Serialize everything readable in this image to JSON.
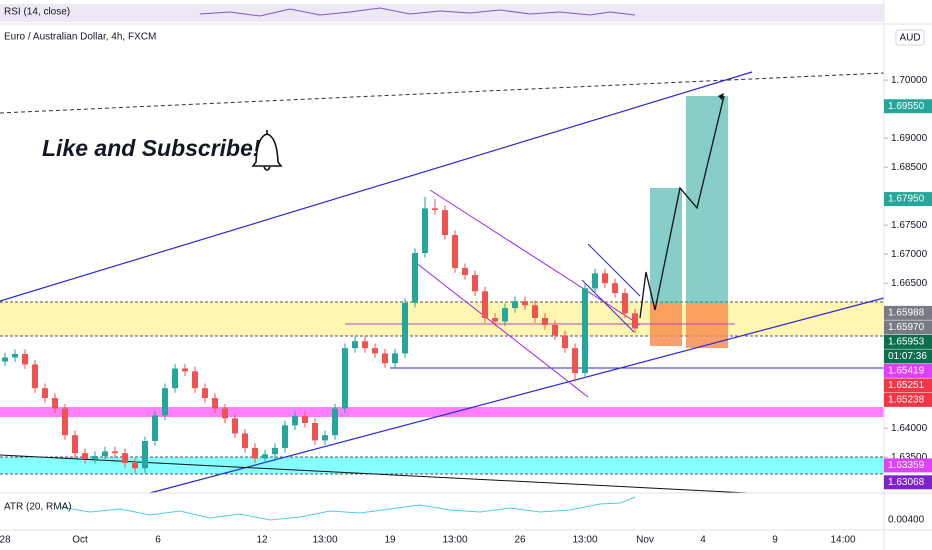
{
  "chart_data": {
    "type": "candlestick",
    "title": "Euro / Australian Dollar, 4h, FXCM",
    "currency": "AUD",
    "annotation": "Like and Subscribe!",
    "rsi_label": "RSI (14, close)",
    "atr_label": "ATR (20, RMA)",
    "atr_tick": {
      "value": 0.004,
      "label": "0.00400"
    },
    "x_labels": [
      "28",
      "Oct",
      "6",
      "12",
      "13:00",
      "19",
      "13:00",
      "26",
      "13:00",
      "Nov",
      "4",
      "9",
      "14:00"
    ],
    "ylim": [
      1.6278,
      1.7114
    ],
    "yticks": [
      {
        "value": 1.7,
        "label": "1.70000"
      },
      {
        "value": 1.69,
        "label": "1.69000"
      },
      {
        "value": 1.685,
        "label": "1.68500"
      },
      {
        "value": 1.675,
        "label": "1.67500"
      },
      {
        "value": 1.67,
        "label": "1.67000"
      },
      {
        "value": 1.665,
        "label": "1.66500"
      },
      {
        "value": 1.64,
        "label": "1.64000"
      },
      {
        "value": 1.635,
        "label": "1.63500"
      }
    ],
    "price_labels": [
      {
        "value": 1.6955,
        "label": "1.69550",
        "color": "#26a69a"
      },
      {
        "value": 1.6795,
        "label": "1.67950",
        "color": "#26a69a"
      },
      {
        "value": 1.65988,
        "label": "1.65988",
        "color": "#787b86"
      },
      {
        "value": 1.6597,
        "label": "1.65970",
        "color": "#787b86"
      },
      {
        "value": 1.65953,
        "label": "1.65953",
        "color": "#0b6e4f"
      },
      {
        "value": 1.65419,
        "label": "1.65419",
        "color": "#e040fb"
      },
      {
        "value": 1.65251,
        "label": "1.65251",
        "color": "#f23645"
      },
      {
        "value": 1.65238,
        "label": "1.65238",
        "color": "#f23645"
      },
      {
        "value": 1.63359,
        "label": "1.63359",
        "color": "#e040fb"
      },
      {
        "value": 1.63068,
        "label": "1.63068",
        "color": "#7e22ce"
      }
    ],
    "countdown": "01:07:36",
    "up_color": "#26a69a",
    "down_color": "#ef5350",
    "candles": [
      [
        1.6515,
        1.653,
        1.6507,
        1.6522
      ],
      [
        1.6522,
        1.6536,
        1.6514,
        1.6528
      ],
      [
        1.6528,
        1.6536,
        1.6502,
        1.651
      ],
      [
        1.651,
        1.6518,
        1.6461,
        1.6469
      ],
      [
        1.6469,
        1.6477,
        1.6444,
        1.6452
      ],
      [
        1.6452,
        1.646,
        1.6426,
        1.6434
      ],
      [
        1.6434,
        1.6442,
        1.638,
        1.6388
      ],
      [
        1.6388,
        1.6396,
        1.6349,
        1.6357
      ],
      [
        1.6357,
        1.6365,
        1.6339,
        1.6347
      ],
      [
        1.6347,
        1.636,
        1.6339,
        1.6352
      ],
      [
        1.6352,
        1.6368,
        1.6344,
        1.636
      ],
      [
        1.636,
        1.6368,
        1.6349,
        1.6357
      ],
      [
        1.6357,
        1.6365,
        1.6332,
        1.634
      ],
      [
        1.634,
        1.6348,
        1.6323,
        1.6331
      ],
      [
        1.6331,
        1.6386,
        1.6323,
        1.6378
      ],
      [
        1.6378,
        1.643,
        1.637,
        1.6422
      ],
      [
        1.6422,
        1.6477,
        1.6414,
        1.6469
      ],
      [
        1.6469,
        1.6511,
        1.6461,
        1.6503
      ],
      [
        1.6503,
        1.6511,
        1.649,
        1.6498
      ],
      [
        1.6498,
        1.6506,
        1.6461,
        1.6469
      ],
      [
        1.6469,
        1.6477,
        1.6444,
        1.6452
      ],
      [
        1.6452,
        1.646,
        1.6426,
        1.6434
      ],
      [
        1.6434,
        1.6442,
        1.6409,
        1.6417
      ],
      [
        1.6417,
        1.6425,
        1.6383,
        1.6391
      ],
      [
        1.6391,
        1.6399,
        1.6358,
        1.6366
      ],
      [
        1.6366,
        1.6374,
        1.634,
        1.6348
      ],
      [
        1.6348,
        1.6363,
        1.634,
        1.6355
      ],
      [
        1.6355,
        1.6374,
        1.6347,
        1.6366
      ],
      [
        1.6366,
        1.6413,
        1.6358,
        1.6405
      ],
      [
        1.6405,
        1.6429,
        1.6397,
        1.6421
      ],
      [
        1.6421,
        1.6429,
        1.6401,
        1.6409
      ],
      [
        1.6409,
        1.6417,
        1.6371,
        1.6379
      ],
      [
        1.6379,
        1.6396,
        1.6371,
        1.6388
      ],
      [
        1.6388,
        1.6442,
        1.638,
        1.6434
      ],
      [
        1.6434,
        1.6546,
        1.6426,
        1.6538
      ],
      [
        1.6538,
        1.6558,
        1.653,
        1.655
      ],
      [
        1.655,
        1.6558,
        1.653,
        1.6538
      ],
      [
        1.6538,
        1.6546,
        1.6521,
        1.6529
      ],
      [
        1.6529,
        1.6537,
        1.6504,
        1.6512
      ],
      [
        1.6512,
        1.6537,
        1.6504,
        1.6529
      ],
      [
        1.6529,
        1.6624,
        1.6521,
        1.6616
      ],
      [
        1.6616,
        1.671,
        1.6608,
        1.6702
      ],
      [
        1.6702,
        1.6799,
        1.6694,
        1.6779
      ],
      [
        1.6779,
        1.6795,
        1.6768,
        1.6776
      ],
      [
        1.6776,
        1.6784,
        1.6725,
        1.6733
      ],
      [
        1.6733,
        1.6741,
        1.6668,
        1.6676
      ],
      [
        1.6676,
        1.6684,
        1.6656,
        1.6664
      ],
      [
        1.6664,
        1.6672,
        1.6628,
        1.6636
      ],
      [
        1.6636,
        1.6644,
        1.6582,
        1.659
      ],
      [
        1.659,
        1.6598,
        1.6576,
        1.6584
      ],
      [
        1.6584,
        1.6615,
        1.6576,
        1.6607
      ],
      [
        1.6607,
        1.6627,
        1.6599,
        1.6619
      ],
      [
        1.6619,
        1.6627,
        1.6604,
        1.6612
      ],
      [
        1.6612,
        1.662,
        1.6582,
        1.659
      ],
      [
        1.659,
        1.6598,
        1.657,
        1.6578
      ],
      [
        1.6578,
        1.6586,
        1.6552,
        1.656
      ],
      [
        1.656,
        1.6568,
        1.653,
        1.6538
      ],
      [
        1.6538,
        1.6546,
        1.648,
        1.6495
      ],
      [
        1.6495,
        1.6649,
        1.6487,
        1.6641
      ],
      [
        1.6641,
        1.6675,
        1.6633,
        1.6667
      ],
      [
        1.6667,
        1.6675,
        1.6642,
        1.665
      ],
      [
        1.665,
        1.6658,
        1.6625,
        1.6633
      ],
      [
        1.6633,
        1.6641,
        1.659,
        1.6598
      ],
      [
        1.6598,
        1.6606,
        1.6564,
        1.6572
      ]
    ]
  }
}
